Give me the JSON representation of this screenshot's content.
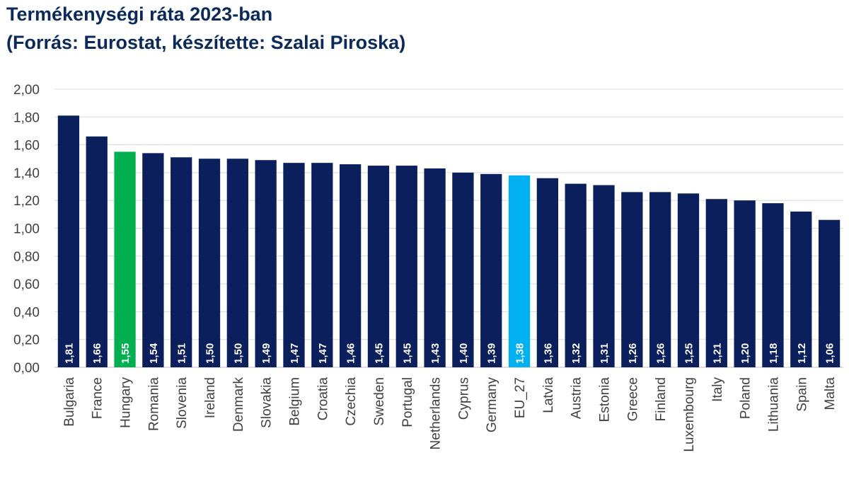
{
  "title": {
    "line1": "Termékenységi ráta 2023-ban",
    "line2": "(Forrás: Eurostat, készítette: Szalai Piroska)"
  },
  "colors": {
    "default_bar": "#0a1f5c",
    "hungary_bar": "#00b050",
    "eu_bar": "#00b0f0",
    "gridline": "#d9d9d9",
    "axis_line": "#bfbfbf",
    "title": "#0b2a5b"
  },
  "chart_data": {
    "type": "bar",
    "title": "Termékenységi ráta 2023-ban",
    "subtitle": "(Forrás: Eurostat, készítette: Szalai Piroska)",
    "xlabel": "",
    "ylabel": "",
    "ylim": [
      0,
      2
    ],
    "ytick_step": 0.2,
    "ytick_labels": [
      "0,00",
      "0,20",
      "0,40",
      "0,60",
      "0,80",
      "1,00",
      "1,20",
      "1,40",
      "1,60",
      "1,80",
      "2,00"
    ],
    "grid": true,
    "legend": "none",
    "categories": [
      "Bulgaria",
      "France",
      "Hungary",
      "Romania",
      "Slovenia",
      "Ireland",
      "Denmark",
      "Slovakia",
      "Belgium",
      "Croatia",
      "Czechia",
      "Sweden",
      "Portugal",
      "Netherlands",
      "Cyprus",
      "Germany",
      "EU_27",
      "Latvia",
      "Austria",
      "Estonia",
      "Greece",
      "Finland",
      "Luxembourg",
      "Italy",
      "Poland",
      "Lithuania",
      "Spain",
      "Malta"
    ],
    "values": [
      1.81,
      1.66,
      1.55,
      1.54,
      1.51,
      1.5,
      1.5,
      1.49,
      1.47,
      1.47,
      1.46,
      1.45,
      1.45,
      1.43,
      1.4,
      1.39,
      1.38,
      1.36,
      1.32,
      1.31,
      1.26,
      1.26,
      1.25,
      1.21,
      1.2,
      1.18,
      1.12,
      1.06
    ],
    "data_labels": [
      "1,81",
      "1,66",
      "1,55",
      "1,54",
      "1,51",
      "1,50",
      "1,50",
      "1,49",
      "1,47",
      "1,47",
      "1,46",
      "1,45",
      "1,45",
      "1,43",
      "1,40",
      "1,39",
      "1,38",
      "1,36",
      "1,32",
      "1,31",
      "1,26",
      "1,26",
      "1,25",
      "1,21",
      "1,20",
      "1,18",
      "1,12",
      "1,06"
    ],
    "highlight": {
      "Hungary": "#00b050",
      "EU_27": "#00b0f0"
    }
  }
}
